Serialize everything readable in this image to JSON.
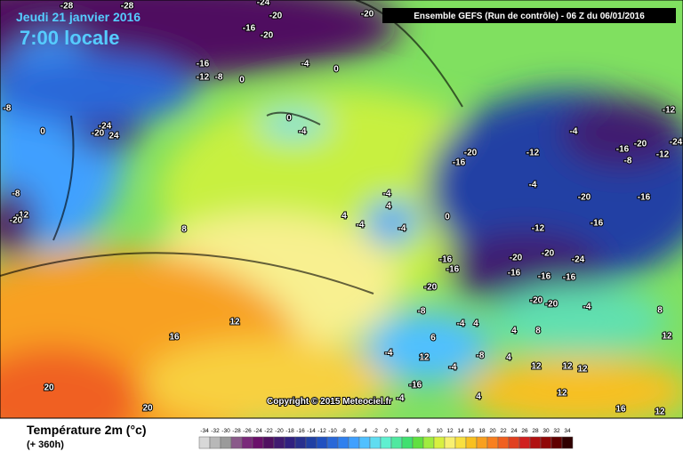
{
  "header": {
    "date": "Jeudi 21 janvier 2016",
    "time": "7:00 locale",
    "run": "Ensemble GEFS  (Run de contrôle)  - 06 Z du 06/01/2016"
  },
  "copyright": "Copyright © 2015 Meteociel.fr",
  "footer": {
    "title": "Température 2m (°c)",
    "lead": "(+ 360h)"
  },
  "legend": {
    "ticks": [
      -34,
      -32,
      -30,
      -28,
      -26,
      -24,
      -22,
      -20,
      -18,
      -16,
      -14,
      -12,
      -10,
      -8,
      -6,
      -4,
      -2,
      0,
      2,
      4,
      6,
      8,
      10,
      12,
      14,
      16,
      18,
      20,
      22,
      24,
      26,
      28,
      30,
      32,
      34
    ],
    "colors": [
      "#d8d8d8",
      "#b8b8b8",
      "#9a9a9a",
      "#8a5a8a",
      "#7a2a7a",
      "#6a106a",
      "#501060",
      "#401a70",
      "#302080",
      "#28308e",
      "#2040a4",
      "#2050c0",
      "#2a68d8",
      "#3080ee",
      "#40a0ff",
      "#50c0ff",
      "#60dcf0",
      "#60f0d0",
      "#50e8a0",
      "#40e070",
      "#60e040",
      "#a0ec40",
      "#d8f040",
      "#f8f070",
      "#f8e040",
      "#f8c020",
      "#f8a020",
      "#f88020",
      "#f06020",
      "#e04020",
      "#d02020",
      "#b01010",
      "#900808",
      "#600000",
      "#300000"
    ]
  },
  "contour_labels": [
    -28,
    -28,
    -24,
    -20,
    -16,
    -20,
    -20,
    -16,
    -12,
    -8,
    0,
    -4,
    0,
    -8,
    0,
    -24,
    24,
    -20,
    -8,
    -12,
    -20,
    8,
    0,
    -4,
    12,
    16,
    20,
    20,
    -4,
    4,
    4,
    -4,
    -4,
    0,
    -20,
    -16,
    -12,
    -4,
    -4,
    -16,
    -20,
    -12,
    -24,
    -12,
    -8,
    -20,
    -16,
    -12,
    -16,
    -16,
    -16,
    -20,
    -20,
    -20,
    -24,
    -16,
    -16,
    -16,
    -20,
    -20,
    -4,
    -8,
    6,
    -4,
    4,
    4,
    8,
    -8,
    -4,
    12,
    -4,
    -16,
    -4,
    4,
    4,
    12,
    12,
    12,
    12,
    16,
    12,
    8,
    12
  ]
}
